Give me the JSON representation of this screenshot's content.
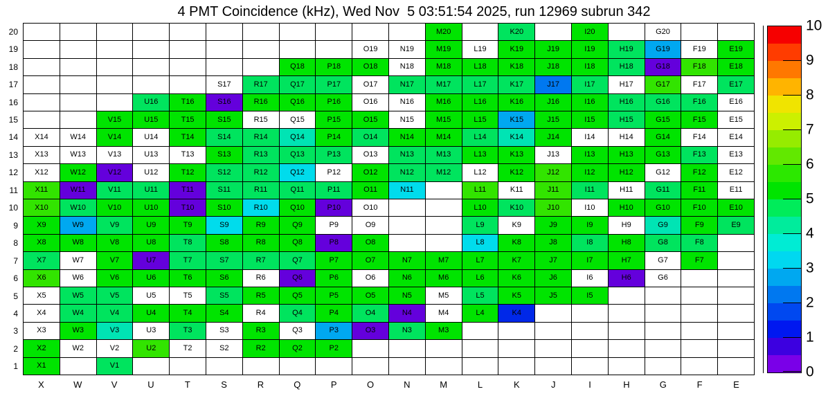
{
  "title": "4 PMT Coincidence (kHz), Wed Nov  5 03:51:54 2025, run 12969 subrun 342",
  "chart_data": {
    "type": "heatmap",
    "title": "4 PMT Coincidence (kHz), Wed Nov  5 03:51:54 2025, run 12969 subrun 342",
    "unit": "kHz",
    "columns": [
      "X",
      "W",
      "V",
      "U",
      "T",
      "S",
      "R",
      "Q",
      "P",
      "O",
      "N",
      "M",
      "L",
      "K",
      "J",
      "I",
      "H",
      "G",
      "F",
      "E"
    ],
    "rows_top_to_bottom": [
      "20",
      "19",
      "18",
      "17",
      "16",
      "15",
      "14",
      "13",
      "12",
      "11",
      "10",
      "9",
      "8",
      "7",
      "6",
      "5",
      "4",
      "3",
      "2",
      "1"
    ],
    "cell_format": "LABEL:colorcode, empty string = no PMT (blank white cell), code wl = labeled but out-of-scale (white)",
    "palette": {
      "g": "#00e400",
      "g6": "#32e400",
      "sg": "#00e45e",
      "tq": "#00e4b4",
      "cy": "#00dcec",
      "lb": "#00a8f0",
      "bl": "#0078f0",
      "db": "#0028e8",
      "pu": "#6400dc",
      "wl": "#ffffff"
    },
    "palette_values_kHz": {
      "g": 5.2,
      "g6": 5.8,
      "sg": 4.8,
      "tq": 3.8,
      "cy": 3.2,
      "lb": 2.8,
      "bl": 2.2,
      "db": 1.6,
      "pu": 0.6,
      "wl": "out-of-range"
    },
    "cells": [
      [
        "",
        "",
        "",
        "",
        "",
        "",
        "",
        "",
        "",
        "",
        "",
        "M20:g",
        "",
        "K20:sg",
        "",
        "I20:g",
        "",
        "G20:wl",
        "",
        ""
      ],
      [
        "",
        "",
        "",
        "",
        "",
        "",
        "",
        "",
        "",
        "O19:wl",
        "N19:wl",
        "M19:g",
        "L19:wl",
        "K19:g",
        "J19:g",
        "I19:g",
        "H19:sg",
        "G19:lb",
        "F19:wl",
        "E19:g"
      ],
      [
        "",
        "",
        "",
        "",
        "",
        "",
        "",
        "Q18:g",
        "P18:g",
        "O18:g",
        "N18:wl",
        "M18:g",
        "L18:g",
        "K18:g",
        "J18:g",
        "I18:g",
        "H18:sg",
        "G18:pu",
        "F18:g6",
        "E18:g"
      ],
      [
        "",
        "",
        "",
        "",
        "",
        "S17:wl",
        "R17:sg",
        "Q17:sg",
        "P17:sg",
        "O17:wl",
        "N17:sg",
        "M17:sg",
        "L17:sg",
        "K17:sg",
        "J17:bl",
        "I17:sg",
        "H17:wl",
        "G17:g6",
        "F17:wl",
        "E17:sg"
      ],
      [
        "",
        "",
        "",
        "U16:sg",
        "T16:g",
        "S16:pu",
        "R16:g",
        "Q16:g",
        "P16:g",
        "O16:wl",
        "N16:wl",
        "M16:g",
        "L16:g",
        "K16:g",
        "J16:g",
        "I16:g",
        "H16:sg",
        "G16:sg",
        "F16:sg",
        "E16:wl"
      ],
      [
        "",
        "",
        "V15:g",
        "U15:g",
        "T15:g",
        "S15:g",
        "R15:wl",
        "Q15:wl",
        "P15:g",
        "O15:g",
        "N15:wl",
        "M15:g",
        "L15:g",
        "K15:lb",
        "J15:g",
        "I15:g",
        "H15:sg",
        "G15:g",
        "F15:g",
        "E15:wl"
      ],
      [
        "X14:wl",
        "W14:wl",
        "V14:g",
        "U14:wl",
        "T14:g",
        "S14:sg",
        "R14:sg",
        "Q14:tq",
        "P14:g",
        "O14:sg",
        "N14:g",
        "M14:g",
        "L14:sg",
        "K14:tq",
        "J14:g",
        "I14:wl",
        "H14:wl",
        "G14:g",
        "F14:wl",
        "E14:wl"
      ],
      [
        "X13:wl",
        "W13:wl",
        "V13:wl",
        "U13:wl",
        "T13:wl",
        "S13:g",
        "R13:sg",
        "Q13:sg",
        "P13:sg",
        "O13:wl",
        "N13:sg",
        "M13:sg",
        "L13:g",
        "K13:g",
        "J13:wl",
        "I13:g",
        "H13:g",
        "G13:g",
        "F13:sg",
        "E13:wl"
      ],
      [
        "X12:wl",
        "W12:g",
        "V12:pu",
        "U12:wl",
        "T12:g",
        "S12:sg",
        "R12:sg",
        "Q12:cy",
        "P12:wl",
        "O12:g",
        "N12:sg",
        "M12:sg",
        "L12:wl",
        "K12:g",
        "J12:g6",
        "I12:g",
        "H12:g",
        "G12:wl",
        "F12:g",
        "E12:wl"
      ],
      [
        "X11:g6",
        "W11:pu",
        "V11:sg",
        "U11:sg",
        "T11:pu",
        "S11:sg",
        "R11:sg",
        "Q11:sg",
        "P11:sg",
        "O11:g",
        "N11:cy",
        "",
        "L11:g6",
        "K11:wl",
        "J11:g6",
        "I11:sg",
        "H11:wl",
        "G11:sg",
        "F11:g",
        "E11:wl"
      ],
      [
        "X10:g6",
        "W10:sg",
        "V10:g",
        "U10:g",
        "T10:pu",
        "S10:g",
        "R10:cy",
        "Q10:g",
        "P10:pu",
        "O10:wl",
        "",
        "",
        "L10:g",
        "K10:sg",
        "J10:g6",
        "I10:wl",
        "H10:g",
        "G10:g",
        "F10:g",
        "E10:g"
      ],
      [
        "X9:g",
        "W9:lb",
        "V9:sg",
        "U9:g",
        "T9:g",
        "S9:cy",
        "R9:g",
        "Q9:g",
        "P9:wl",
        "O9:wl",
        "",
        "",
        "L9:sg",
        "K9:wl",
        "J9:g",
        "I9:g",
        "H9:wl",
        "G9:tq",
        "F9:g",
        "E9:sg"
      ],
      [
        "X8:g",
        "W8:g",
        "V8:g",
        "U8:g",
        "T8:sg",
        "S8:g",
        "R8:g",
        "Q8:g",
        "P8:pu",
        "O8:g",
        "",
        "",
        "L8:cy",
        "K8:g",
        "J8:g",
        "I8:sg",
        "H8:g",
        "G8:sg",
        "F8:sg",
        ""
      ],
      [
        "X7:sg",
        "W7:wl",
        "V7:g",
        "U7:pu",
        "T7:sg",
        "S7:sg",
        "R7:sg",
        "Q7:sg",
        "P7:g",
        "O7:g",
        "N7:g",
        "M7:g",
        "L7:g",
        "K7:g",
        "J7:g",
        "I7:g",
        "H7:g",
        "G7:wl",
        "F7:g",
        ""
      ],
      [
        "X6:g6",
        "W6:wl",
        "V6:g",
        "U6:g",
        "T6:g",
        "S6:g",
        "R6:wl",
        "Q6:pu",
        "P6:g",
        "O6:wl",
        "N6:g",
        "M6:g",
        "L6:g",
        "K6:g",
        "J6:g",
        "I6:wl",
        "H6:pu",
        "G6:wl",
        "",
        ""
      ],
      [
        "X5:wl",
        "W5:sg",
        "V5:sg",
        "U5:wl",
        "T5:wl",
        "S5:sg",
        "R5:g",
        "Q5:g",
        "P5:g",
        "O5:g",
        "N5:g",
        "M5:wl",
        "L5:sg",
        "K5:g",
        "J5:g",
        "I5:g",
        "",
        "",
        "",
        ""
      ],
      [
        "X4:wl",
        "W4:sg",
        "V4:sg",
        "U4:g",
        "T4:g",
        "S4:g",
        "R4:wl",
        "Q4:sg",
        "P4:g",
        "O4:sg",
        "N4:pu",
        "M4:wl",
        "L4:g",
        "K4:db",
        "",
        "",
        "",
        "",
        "",
        ""
      ],
      [
        "X3:wl",
        "W3:g",
        "V3:tq",
        "U3:wl",
        "T3:sg",
        "S3:wl",
        "R3:g",
        "Q3:wl",
        "P3:lb",
        "O3:pu",
        "N3:sg",
        "M3:g",
        "",
        "",
        "",
        "",
        "",
        "",
        "",
        ""
      ],
      [
        "X2:g",
        "W2:wl",
        "V2:wl",
        "U2:g6",
        "T2:wl",
        "S2:wl",
        "R2:g",
        "Q2:g",
        "P2:g",
        "",
        "",
        "",
        "",
        "",
        "",
        "",
        "",
        "",
        "",
        ""
      ],
      [
        "X1:g",
        "",
        "V1:sg",
        "",
        "",
        "",
        "",
        "",
        "",
        "",
        "",
        "",
        "",
        "",
        "",
        "",
        "",
        "",
        "",
        ""
      ]
    ],
    "colorbar": {
      "min": 0,
      "max": 10,
      "tick_labels_top_to_bottom": [
        "10",
        "9",
        "8",
        "7",
        "6",
        "5",
        "4",
        "3",
        "2",
        "1",
        "0"
      ],
      "bands_bottom_to_top": [
        "#7a00e8",
        "#3c00e0",
        "#0018f0",
        "#0048f0",
        "#0078f0",
        "#00a8f0",
        "#00d8f0",
        "#00ecd4",
        "#00ec9c",
        "#00ec5a",
        "#00e400",
        "#2ce800",
        "#62e800",
        "#96ec00",
        "#ccf000",
        "#f0e400",
        "#ffb400",
        "#ff7800",
        "#ff3c00",
        "#f60000"
      ],
      "legend_position": "right",
      "grid": true
    }
  }
}
